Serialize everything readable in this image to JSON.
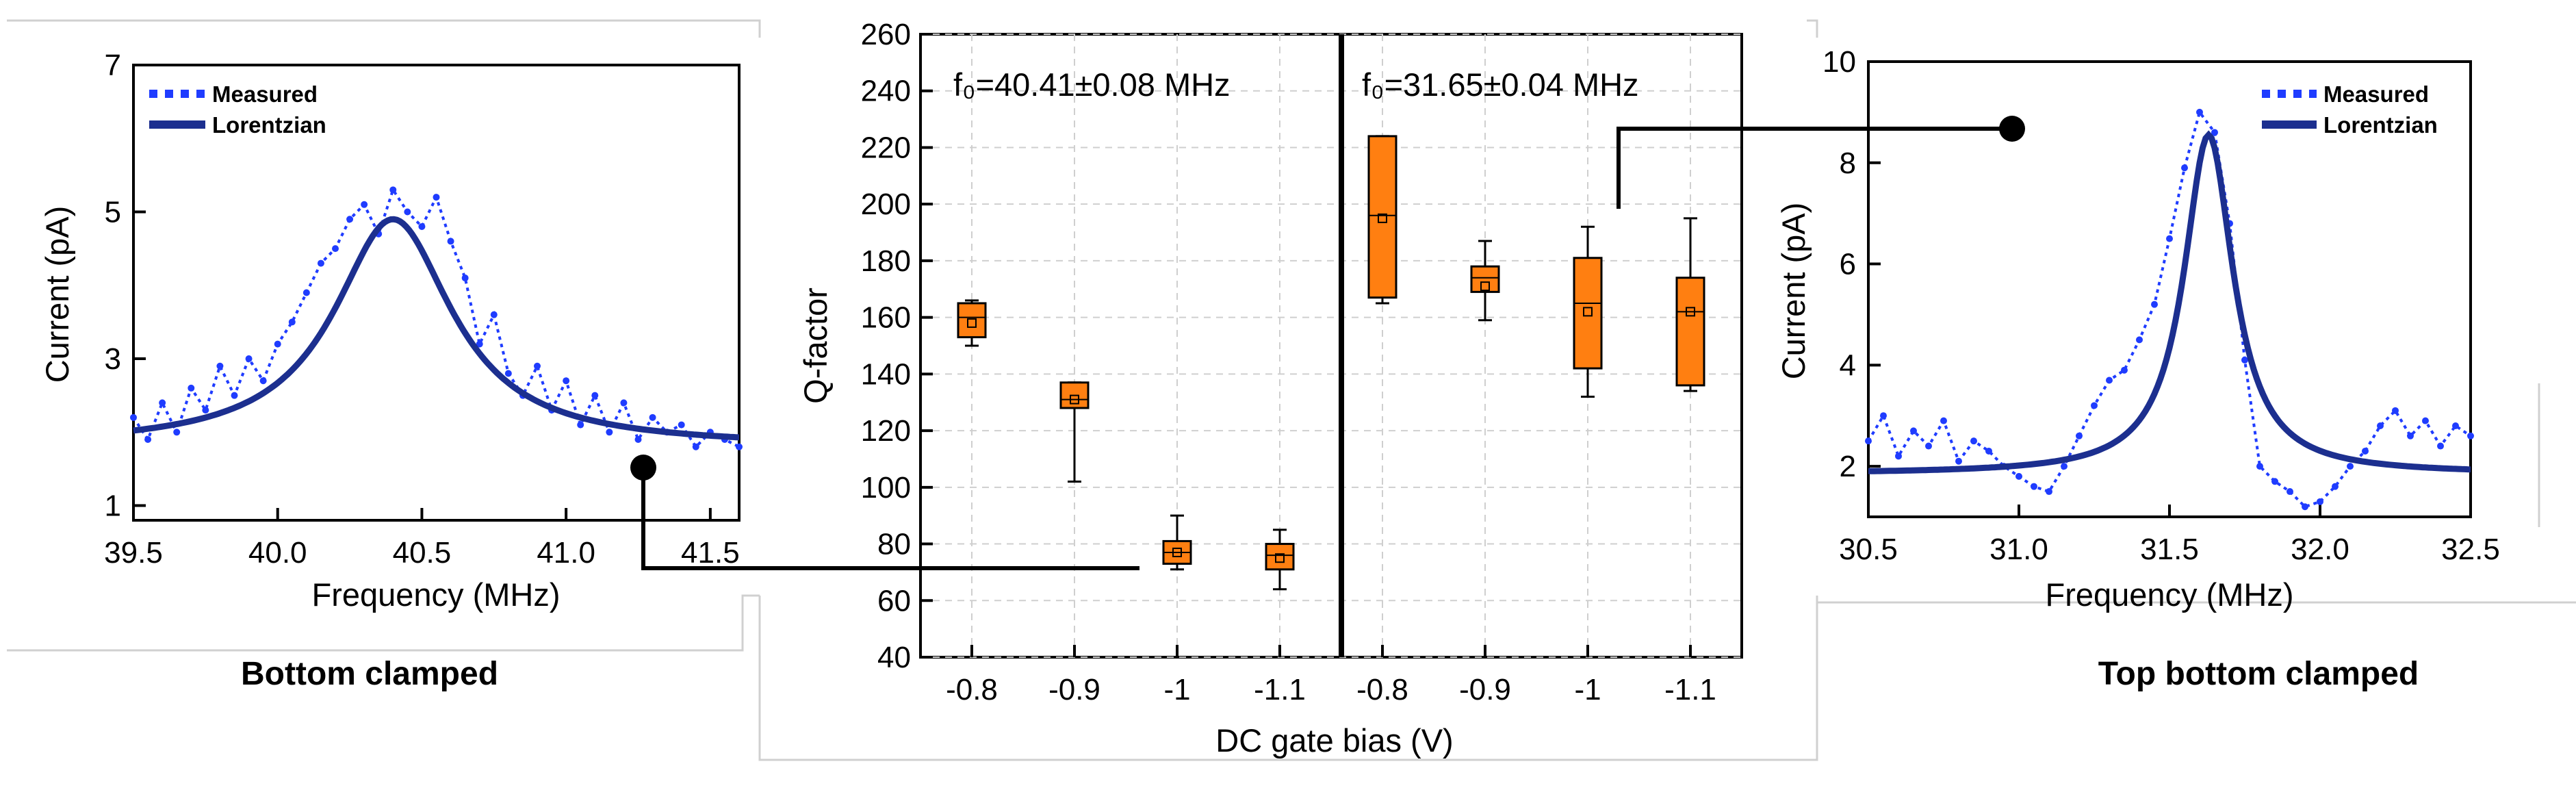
{
  "chart_data": [
    {
      "type": "line",
      "caption": "Bottom clamped",
      "xlabel": "Frequency (MHz)",
      "ylabel": "Current (pA)",
      "xlim": [
        39.5,
        41.6
      ],
      "ylim": [
        0.8,
        7
      ],
      "xticks": [
        "39.5",
        "40.0",
        "40.5",
        "41.0",
        "41.5"
      ],
      "xtick_values": [
        39.5,
        40.0,
        40.5,
        41.0,
        41.5
      ],
      "yticks": [
        "1",
        "3",
        "5",
        "7"
      ],
      "ytick_values": [
        1,
        3,
        5,
        7
      ],
      "legend": [
        "Measured",
        "Lorentzian"
      ],
      "legend_position": "top-left",
      "series": [
        {
          "name": "Measured",
          "style": "dotted",
          "color": "#1f3cff",
          "x": [
            39.5,
            39.55,
            39.6,
            39.65,
            39.7,
            39.75,
            39.8,
            39.85,
            39.9,
            39.95,
            40.0,
            40.05,
            40.1,
            40.15,
            40.2,
            40.25,
            40.3,
            40.35,
            40.4,
            40.45,
            40.5,
            40.55,
            40.6,
            40.65,
            40.7,
            40.75,
            40.8,
            40.85,
            40.9,
            40.95,
            41.0,
            41.05,
            41.1,
            41.15,
            41.2,
            41.25,
            41.3,
            41.35,
            41.4,
            41.45,
            41.5,
            41.55,
            41.6
          ],
          "y": [
            2.2,
            1.9,
            2.4,
            2.0,
            2.6,
            2.3,
            2.9,
            2.5,
            3.0,
            2.7,
            3.2,
            3.5,
            3.9,
            4.3,
            4.5,
            4.9,
            5.1,
            4.7,
            5.3,
            5.0,
            4.8,
            5.2,
            4.6,
            4.1,
            3.2,
            3.6,
            2.8,
            2.5,
            2.9,
            2.3,
            2.7,
            2.1,
            2.5,
            2.0,
            2.4,
            1.9,
            2.2,
            2.0,
            2.1,
            1.8,
            2.0,
            1.9,
            1.8
          ]
        },
        {
          "name": "Lorentzian",
          "style": "solid",
          "color": "#1c2f8f",
          "center": 40.4,
          "amplitude": 3.1,
          "baseline": 1.8,
          "hwhm": 0.25
        }
      ]
    },
    {
      "type": "box",
      "xlabel": "DC gate bias (V)",
      "ylabel": "Q-factor",
      "ylim": [
        40,
        260
      ],
      "yticks": [
        "40",
        "60",
        "80",
        "100",
        "120",
        "140",
        "160",
        "180",
        "200",
        "220",
        "240",
        "260"
      ],
      "ytick_values": [
        40,
        60,
        80,
        100,
        120,
        140,
        160,
        180,
        200,
        220,
        240,
        260
      ],
      "categories": [
        "-0.8",
        "-0.9",
        "-1",
        "-1.1",
        "-0.8",
        "-0.9",
        "-1",
        "-1.1"
      ],
      "annotations": [
        "f₀=40.41±0.08 MHz",
        "f₀=31.65±0.04 MHz"
      ],
      "box_color": "#ff7f11",
      "series": [
        {
          "group": 1,
          "bias": "-0.8",
          "min": 150,
          "q1": 153,
          "median": 160,
          "mean": 158,
          "q3": 165,
          "max": 166
        },
        {
          "group": 1,
          "bias": "-0.9",
          "min": 102,
          "q1": 128,
          "median": 131,
          "mean": 131,
          "q3": 137,
          "max": 137
        },
        {
          "group": 1,
          "bias": "-1",
          "min": 71,
          "q1": 73,
          "median": 77,
          "mean": 77,
          "q3": 81,
          "max": 90
        },
        {
          "group": 1,
          "bias": "-1.1",
          "min": 64,
          "q1": 71,
          "median": 76,
          "mean": 75,
          "q3": 80,
          "max": 85
        },
        {
          "group": 2,
          "bias": "-0.8",
          "min": 165,
          "q1": 167,
          "median": 196,
          "mean": 195,
          "q3": 224,
          "max": 224
        },
        {
          "group": 2,
          "bias": "-0.9",
          "min": 159,
          "q1": 169,
          "median": 174,
          "mean": 171,
          "q3": 178,
          "max": 187
        },
        {
          "group": 2,
          "bias": "-1",
          "min": 132,
          "q1": 142,
          "median": 165,
          "mean": 162,
          "q3": 181,
          "max": 192
        },
        {
          "group": 2,
          "bias": "-1.1",
          "min": 134,
          "q1": 136,
          "median": 162,
          "mean": 162,
          "q3": 174,
          "max": 195
        }
      ]
    },
    {
      "type": "line",
      "caption": "Top bottom clamped",
      "xlabel": "Frequency (MHz)",
      "ylabel": "Current (pA)",
      "xlim": [
        30.5,
        32.5
      ],
      "ylim": [
        1,
        10
      ],
      "xticks": [
        "30.5",
        "31.0",
        "31.5",
        "32.0",
        "32.5"
      ],
      "xtick_values": [
        30.5,
        31.0,
        31.5,
        32.0,
        32.5
      ],
      "yticks": [
        "2",
        "4",
        "6",
        "8",
        "10"
      ],
      "ytick_values": [
        2,
        4,
        6,
        8,
        10
      ],
      "legend": [
        "Measured",
        "Lorentzian"
      ],
      "legend_position": "top-right",
      "series": [
        {
          "name": "Measured",
          "style": "dotted",
          "color": "#1f3cff",
          "x": [
            30.5,
            30.55,
            30.6,
            30.65,
            30.7,
            30.75,
            30.8,
            30.85,
            30.9,
            30.95,
            31.0,
            31.05,
            31.1,
            31.15,
            31.2,
            31.25,
            31.3,
            31.35,
            31.4,
            31.45,
            31.5,
            31.55,
            31.6,
            31.65,
            31.7,
            31.75,
            31.8,
            31.85,
            31.9,
            31.95,
            32.0,
            32.05,
            32.1,
            32.15,
            32.2,
            32.25,
            32.3,
            32.35,
            32.4,
            32.45,
            32.5
          ],
          "y": [
            2.5,
            3.0,
            2.2,
            2.7,
            2.4,
            2.9,
            2.1,
            2.5,
            2.3,
            2.0,
            1.8,
            1.6,
            1.5,
            2.0,
            2.6,
            3.2,
            3.7,
            3.9,
            4.5,
            5.2,
            6.5,
            7.9,
            9.0,
            8.6,
            6.8,
            4.1,
            2.0,
            1.7,
            1.5,
            1.2,
            1.3,
            1.6,
            2.0,
            2.3,
            2.8,
            3.1,
            2.6,
            2.9,
            2.4,
            2.8,
            2.6
          ]
        },
        {
          "name": "Lorentzian",
          "style": "solid",
          "color": "#1c2f8f",
          "center": 31.63,
          "amplitude": 6.7,
          "baseline": 1.85,
          "hwhm": 0.1
        }
      ]
    }
  ],
  "captions": {
    "left": "Bottom clamped",
    "right": "Top bottom clamped"
  }
}
